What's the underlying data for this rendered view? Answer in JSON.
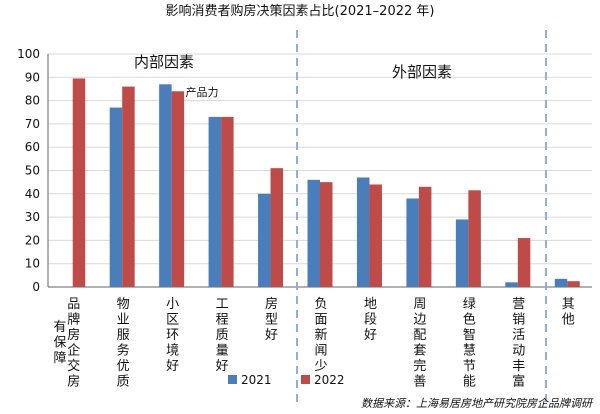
{
  "chart_data": {
    "type": "bar",
    "title": "影响消费者购房决策因素占比(2021–2022 年)",
    "ylim": [
      0,
      100
    ],
    "yticks": [
      "0",
      "10",
      "20",
      "30",
      "40",
      "50",
      "60",
      "70",
      "80",
      "90",
      "100"
    ],
    "categories": [
      [
        "品",
        "牌",
        "房",
        "企",
        "交",
        "房"
      ],
      [
        "物",
        "业",
        "服",
        "务",
        "优",
        "质"
      ],
      [
        "小",
        "区",
        "环",
        "境",
        "好"
      ],
      [
        "工",
        "程",
        "质",
        "量",
        "好"
      ],
      [
        "房",
        "型",
        "好"
      ],
      [
        "负",
        "面",
        "新",
        "闻",
        "少"
      ],
      [
        "地",
        "段",
        "好"
      ],
      [
        "周",
        "边",
        "配",
        "套",
        "完",
        "善"
      ],
      [
        "绿",
        "色",
        "智",
        "慧",
        "节",
        "能"
      ],
      [
        "营",
        "销",
        "活",
        "动",
        "丰",
        "富"
      ],
      [
        "其",
        "他"
      ]
    ],
    "extra_label": [
      "有",
      "保",
      "障"
    ],
    "series": [
      {
        "name": "2021",
        "color": "#4a7ebb",
        "values": [
          null,
          77,
          87,
          73,
          40,
          46,
          47,
          38,
          29,
          2,
          3.5
        ]
      },
      {
        "name": "2022",
        "color": "#be4b48",
        "values": [
          89.5,
          86,
          84,
          73,
          51,
          45,
          44,
          43,
          41.5,
          21,
          2.5
        ]
      }
    ],
    "annotations": {
      "internal": "内部因素",
      "external": "外部因素",
      "product": "产品力"
    },
    "legend_position": "bottom-center",
    "source": "数据来源：上海易居房地产研究院房企品牌调研"
  }
}
